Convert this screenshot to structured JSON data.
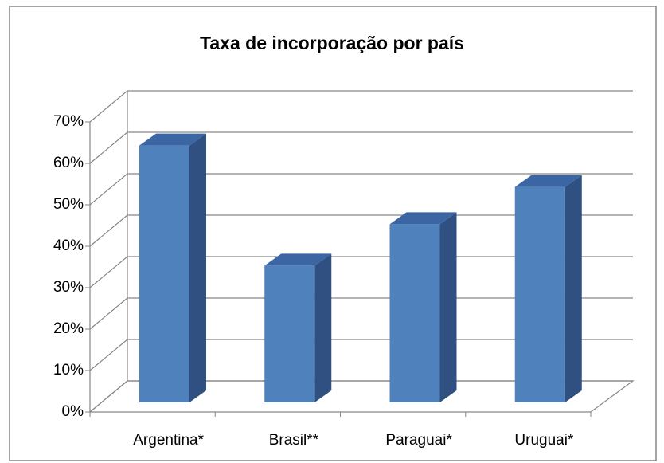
{
  "chart_data": {
    "type": "bar3d",
    "title": "Taxa de incorporação por país",
    "categories": [
      "Argentina*",
      "Brasil**",
      "Paraguai*",
      "Uruguai*"
    ],
    "values": [
      62,
      33,
      43,
      52
    ],
    "color": "#4f81bd",
    "ylim": [
      0,
      70
    ],
    "yticks": [
      {
        "value": 0,
        "label": "0%"
      },
      {
        "value": 10,
        "label": "10%"
      },
      {
        "value": 20,
        "label": "20%"
      },
      {
        "value": 30,
        "label": "30%"
      },
      {
        "value": 40,
        "label": "40%"
      },
      {
        "value": 50,
        "label": "50%"
      },
      {
        "value": 60,
        "label": "60%"
      },
      {
        "value": 70,
        "label": "70%"
      }
    ],
    "grid": true
  }
}
